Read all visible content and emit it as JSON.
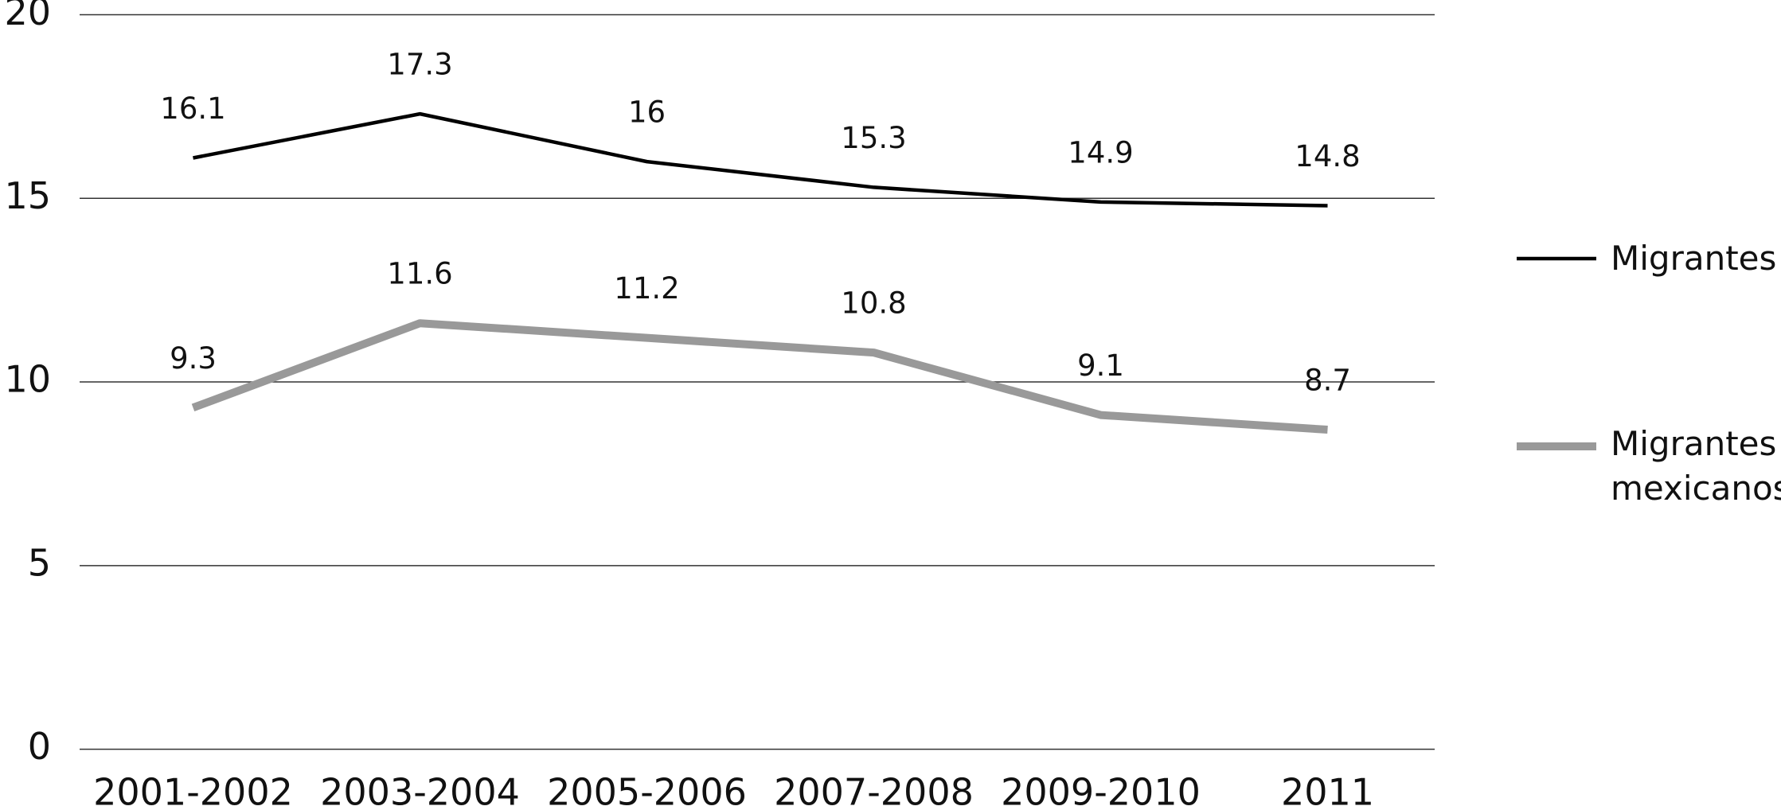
{
  "chart_data": {
    "type": "line",
    "categories": [
      "2001-2002",
      "2003-2004",
      "2005-2006",
      "2007-2008",
      "2009-2010",
      "2011"
    ],
    "series": [
      {
        "name": "Migrantes",
        "color": "#000000",
        "values": [
          16.1,
          17.3,
          16,
          15.3,
          14.9,
          14.8
        ]
      },
      {
        "name": "Migrantes mexicanos",
        "color": "#999999",
        "values": [
          9.3,
          11.6,
          11.2,
          10.8,
          9.1,
          8.7
        ]
      }
    ],
    "ylim": [
      0,
      20
    ],
    "yticks": [
      0,
      5,
      10,
      15,
      20
    ],
    "grid": true,
    "legend": "right"
  }
}
